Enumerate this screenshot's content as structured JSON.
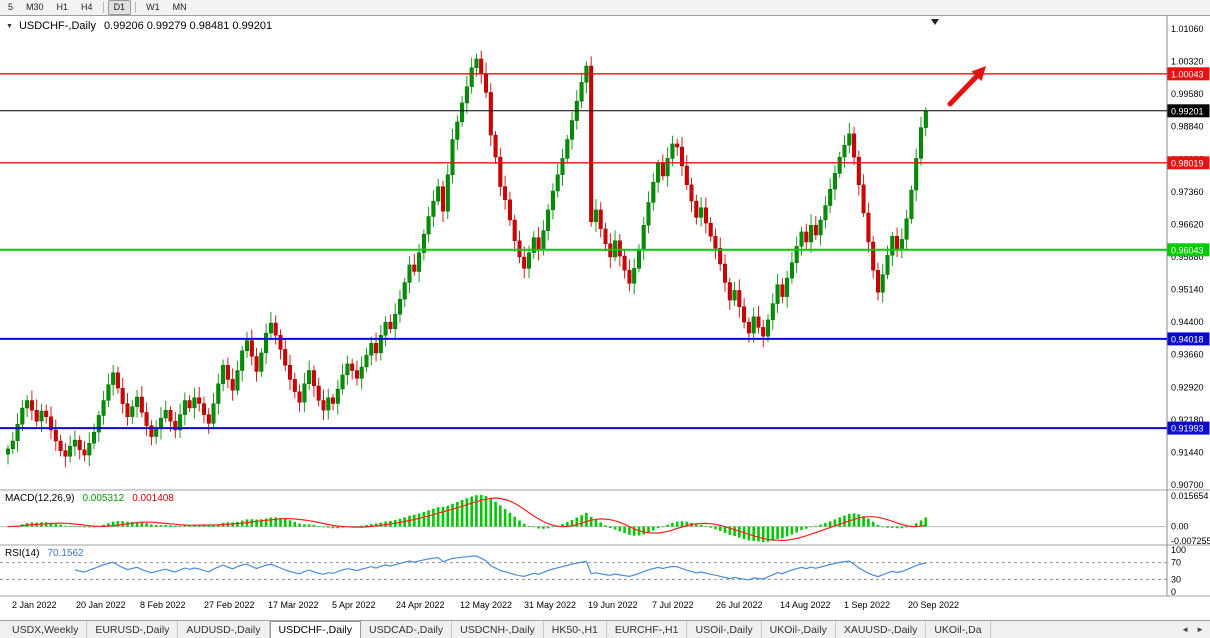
{
  "toolbar": {
    "periods": [
      {
        "label": "5",
        "active": false
      },
      {
        "label": "M30",
        "active": false
      },
      {
        "label": "H1",
        "active": false
      },
      {
        "label": "H4",
        "active": false
      },
      {
        "label": "D1",
        "active": true
      },
      {
        "label": "W1",
        "active": false
      },
      {
        "label": "MN",
        "active": false
      }
    ]
  },
  "chart_header": {
    "symbol": "USDCHF-,Daily",
    "ohlc": "0.99206 0.99279 0.98481 0.99201"
  },
  "icons": {
    "symbol_dropdown": "▼",
    "shift_marker": "▼",
    "tab_scroll_left": "◄",
    "tab_scroll_right": "►"
  },
  "indicators": {
    "macd": {
      "label": "MACD(12,26,9)",
      "value_main": "0.005312",
      "value_signal": "0.001408",
      "ticks": [
        "0.015654",
        "0.00",
        "-0.007255"
      ]
    },
    "rsi": {
      "label": "RSI(14)",
      "value": "70.1562",
      "ticks": [
        "100",
        "70",
        "30",
        "0"
      ],
      "dashed_levels": [
        70,
        30
      ]
    }
  },
  "tabs": {
    "items": [
      {
        "label": "USDX,Weekly",
        "active": false
      },
      {
        "label": "EURUSD-,Daily",
        "active": false
      },
      {
        "label": "AUDUSD-,Daily",
        "active": false
      },
      {
        "label": "USDCHF-,Daily",
        "active": true
      },
      {
        "label": "USDCAD-,Daily",
        "active": false
      },
      {
        "label": "USDCNH-,Daily",
        "active": false
      },
      {
        "label": "HK50-,H1",
        "active": false
      },
      {
        "label": "EURCHF-,H1",
        "active": false
      },
      {
        "label": "USOil-,Daily",
        "active": false
      },
      {
        "label": "UKOil-,Daily",
        "active": false
      },
      {
        "label": "XAUUSD-,Daily",
        "active": false
      },
      {
        "label": "UKOil-,Da",
        "active": false
      }
    ]
  },
  "colors": {
    "candle_up": "#008f00",
    "candle_down": "#d20000",
    "macd_hist": "#00c800",
    "macd_signal": "#ff2020",
    "rsi_line": "#4a8bd8",
    "level_red": "#e81010",
    "level_green": "#00cc00",
    "level_blue": "#0a0ad2",
    "price_line": "#000000",
    "trend_arrow": "#e81010"
  },
  "chart_data": {
    "type": "candlestick",
    "title": "USDCHF-,Daily",
    "x_labels": [
      "2 Jan 2022",
      "20 Jan 2022",
      "8 Feb 2022",
      "27 Feb 2022",
      "17 Mar 2022",
      "5 Apr 2022",
      "24 Apr 2022",
      "12 May 2022",
      "31 May 2022",
      "19 Jun 2022",
      "7 Jul 2022",
      "26 Jul 2022",
      "14 Aug 2022",
      "1 Sep 2022",
      "20 Sep 2022"
    ],
    "y_ticks": [
      "1.01060",
      "1.00320",
      "0.99580",
      "0.98840",
      "0.98100",
      "0.97360",
      "0.96620",
      "0.95880",
      "0.95140",
      "0.94400",
      "0.93660",
      "0.92920",
      "0.92180",
      "0.91440",
      "0.90700"
    ],
    "ylim": [
      0.907,
      1.0106
    ],
    "first_open": 0.914,
    "closes": [
      0.9152,
      0.917,
      0.9208,
      0.9245,
      0.9262,
      0.924,
      0.9215,
      0.9238,
      0.9225,
      0.9195,
      0.917,
      0.9148,
      0.9135,
      0.9158,
      0.9172,
      0.915,
      0.9138,
      0.9165,
      0.919,
      0.9228,
      0.9262,
      0.9298,
      0.9325,
      0.929,
      0.9255,
      0.9225,
      0.9248,
      0.927,
      0.9235,
      0.9205,
      0.918,
      0.9198,
      0.9222,
      0.924,
      0.9215,
      0.9195,
      0.923,
      0.9262,
      0.9245,
      0.9268,
      0.9255,
      0.923,
      0.921,
      0.9255,
      0.93,
      0.9342,
      0.931,
      0.9285,
      0.933,
      0.9375,
      0.9398,
      0.9362,
      0.9328,
      0.937,
      0.9415,
      0.9438,
      0.941,
      0.9378,
      0.9342,
      0.931,
      0.9282,
      0.9258,
      0.93,
      0.933,
      0.9295,
      0.9262,
      0.924,
      0.9268,
      0.9255,
      0.9288,
      0.932,
      0.9345,
      0.933,
      0.9312,
      0.9338,
      0.9365,
      0.9392,
      0.937,
      0.941,
      0.944,
      0.9425,
      0.9458,
      0.9492,
      0.953,
      0.957,
      0.9555,
      0.9598,
      0.964,
      0.968,
      0.9715,
      0.9748,
      0.9692,
      0.9775,
      0.9855,
      0.9895,
      0.9938,
      0.9975,
      1.0018,
      1.0038,
      1.0005,
      0.9962,
      0.9865,
      0.9815,
      0.9748,
      0.9718,
      0.9672,
      0.9625,
      0.9588,
      0.9562,
      0.9598,
      0.9632,
      0.9605,
      0.9648,
      0.9695,
      0.9738,
      0.9775,
      0.9812,
      0.9855,
      0.9898,
      0.9942,
      0.9985,
      1.0022,
      0.9668,
      0.9695,
      0.9652,
      0.9618,
      0.9588,
      0.9625,
      0.959,
      0.9558,
      0.9528,
      0.9562,
      0.9605,
      0.966,
      0.9712,
      0.9758,
      0.98,
      0.9772,
      0.9812,
      0.9845,
      0.9838,
      0.9795,
      0.9752,
      0.9715,
      0.9678,
      0.97,
      0.9665,
      0.9635,
      0.9608,
      0.9572,
      0.953,
      0.949,
      0.9512,
      0.9475,
      0.944,
      0.9415,
      0.9452,
      0.9428,
      0.9408,
      0.9445,
      0.9482,
      0.9525,
      0.9498,
      0.954,
      0.9575,
      0.9612,
      0.9645,
      0.9622,
      0.966,
      0.9638,
      0.9672,
      0.9705,
      0.9742,
      0.9778,
      0.9815,
      0.9842,
      0.9868,
      0.9815,
      0.9752,
      0.9688,
      0.9622,
      0.9558,
      0.9508,
      0.9548,
      0.9592,
      0.9635,
      0.9605,
      0.9628,
      0.9675,
      0.974,
      0.9812,
      0.9882,
      0.99201
    ],
    "levels": [
      {
        "label": "1.00043",
        "price": 1.00043,
        "color": "#e81010",
        "width": 1.3
      },
      {
        "label": "0.99201",
        "price": 0.99201,
        "color": "#000000",
        "width": 1
      },
      {
        "label": "0.98019",
        "price": 0.98019,
        "color": "#e81010",
        "width": 1.3
      },
      {
        "label": "0.96043",
        "price": 0.96043,
        "color": "#00cc00",
        "width": 2
      },
      {
        "label": "0.94018",
        "price": 0.94018,
        "color": "#0a0ad2",
        "width": 2
      },
      {
        "label": "0.91993",
        "price": 0.91993,
        "color": "#0a0ad2",
        "width": 2
      }
    ]
  }
}
